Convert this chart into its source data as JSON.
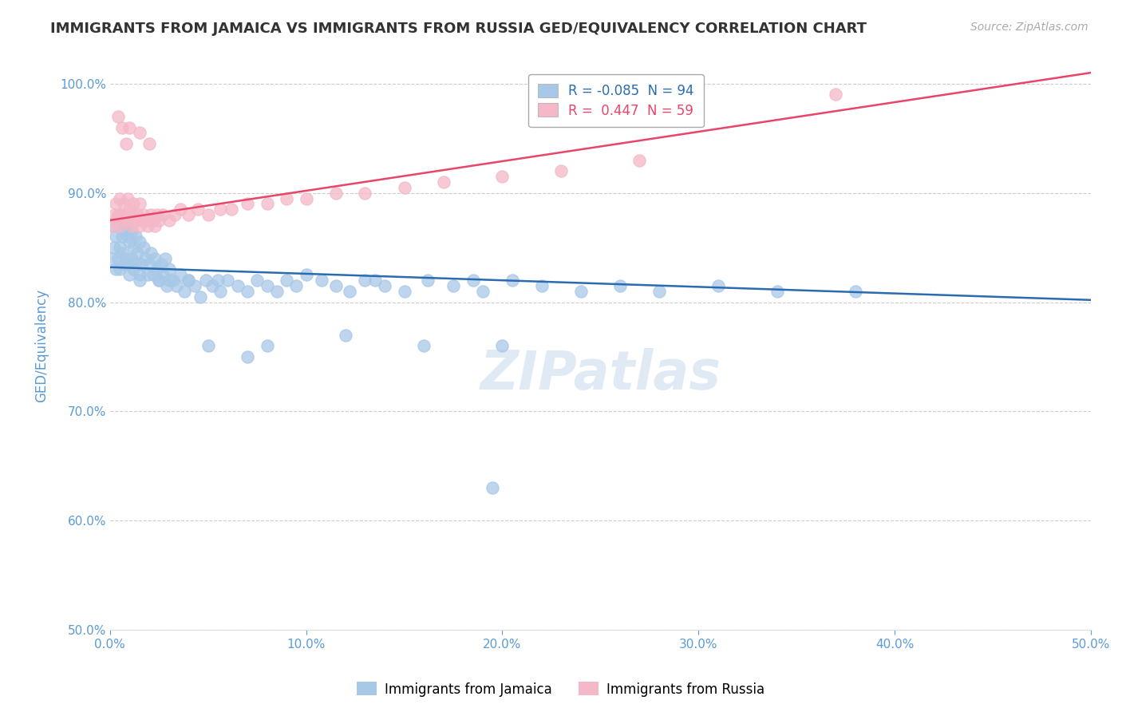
{
  "title": "IMMIGRANTS FROM JAMAICA VS IMMIGRANTS FROM RUSSIA GED/EQUIVALENCY CORRELATION CHART",
  "source_text": "Source: ZipAtlas.com",
  "xlabel": "",
  "ylabel": "GED/Equivalency",
  "xlim": [
    0.0,
    0.5
  ],
  "ylim": [
    0.5,
    1.02
  ],
  "xticks": [
    0.0,
    0.1,
    0.2,
    0.3,
    0.4,
    0.5
  ],
  "xtick_labels": [
    "0.0%",
    "10.0%",
    "20.0%",
    "30.0%",
    "40.0%",
    "50.0%"
  ],
  "ytick_positions": [
    0.5,
    0.6,
    0.7,
    0.8,
    0.9,
    1.0
  ],
  "ytick_labels": [
    "50.0%",
    "60.0%",
    "70.0%",
    "80.0%",
    "90.0%",
    "100.0%"
  ],
  "jamaica_color": "#a8c8e8",
  "russia_color": "#f4b8c8",
  "jamaica_line_color": "#2b6cb0",
  "russia_line_color": "#e8456a",
  "r_jamaica": -0.085,
  "n_jamaica": 94,
  "r_russia": 0.447,
  "n_russia": 59,
  "watermark": "ZIPatlas",
  "background_color": "#ffffff",
  "grid_color": "#cccccc",
  "title_color": "#333333",
  "axis_color": "#5b9bd5",
  "tick_color": "#5b9bd5",
  "jamaica_scatter_x": [
    0.001,
    0.002,
    0.002,
    0.003,
    0.003,
    0.004,
    0.004,
    0.005,
    0.005,
    0.005,
    0.006,
    0.006,
    0.007,
    0.007,
    0.008,
    0.008,
    0.009,
    0.009,
    0.01,
    0.01,
    0.011,
    0.011,
    0.012,
    0.012,
    0.013,
    0.013,
    0.014,
    0.015,
    0.015,
    0.016,
    0.017,
    0.018,
    0.019,
    0.02,
    0.021,
    0.022,
    0.023,
    0.024,
    0.025,
    0.026,
    0.027,
    0.028,
    0.029,
    0.03,
    0.032,
    0.034,
    0.036,
    0.038,
    0.04,
    0.043,
    0.046,
    0.049,
    0.052,
    0.056,
    0.06,
    0.065,
    0.07,
    0.075,
    0.08,
    0.085,
    0.09,
    0.095,
    0.1,
    0.108,
    0.115,
    0.122,
    0.13,
    0.14,
    0.15,
    0.162,
    0.175,
    0.19,
    0.205,
    0.22,
    0.24,
    0.26,
    0.28,
    0.31,
    0.34,
    0.38,
    0.08,
    0.12,
    0.16,
    0.2,
    0.05,
    0.07,
    0.03,
    0.015,
    0.025,
    0.04,
    0.055,
    0.135,
    0.185,
    0.195
  ],
  "jamaica_scatter_y": [
    0.84,
    0.85,
    0.87,
    0.83,
    0.86,
    0.84,
    0.875,
    0.83,
    0.85,
    0.88,
    0.845,
    0.86,
    0.835,
    0.865,
    0.84,
    0.87,
    0.835,
    0.86,
    0.825,
    0.855,
    0.84,
    0.865,
    0.83,
    0.85,
    0.835,
    0.86,
    0.845,
    0.825,
    0.855,
    0.835,
    0.85,
    0.84,
    0.825,
    0.835,
    0.845,
    0.825,
    0.84,
    0.83,
    0.82,
    0.835,
    0.825,
    0.84,
    0.815,
    0.83,
    0.82,
    0.815,
    0.825,
    0.81,
    0.82,
    0.815,
    0.805,
    0.82,
    0.815,
    0.81,
    0.82,
    0.815,
    0.81,
    0.82,
    0.815,
    0.81,
    0.82,
    0.815,
    0.825,
    0.82,
    0.815,
    0.81,
    0.82,
    0.815,
    0.81,
    0.82,
    0.815,
    0.81,
    0.82,
    0.815,
    0.81,
    0.815,
    0.81,
    0.815,
    0.81,
    0.81,
    0.76,
    0.77,
    0.76,
    0.76,
    0.76,
    0.75,
    0.82,
    0.82,
    0.82,
    0.82,
    0.82,
    0.82,
    0.82,
    0.63
  ],
  "russia_scatter_x": [
    0.001,
    0.002,
    0.003,
    0.003,
    0.004,
    0.005,
    0.005,
    0.006,
    0.007,
    0.007,
    0.008,
    0.009,
    0.009,
    0.01,
    0.01,
    0.011,
    0.012,
    0.012,
    0.013,
    0.014,
    0.015,
    0.015,
    0.016,
    0.017,
    0.018,
    0.019,
    0.02,
    0.021,
    0.022,
    0.023,
    0.024,
    0.025,
    0.027,
    0.03,
    0.033,
    0.036,
    0.04,
    0.045,
    0.05,
    0.056,
    0.062,
    0.07,
    0.08,
    0.09,
    0.1,
    0.115,
    0.13,
    0.15,
    0.17,
    0.2,
    0.23,
    0.27,
    0.02,
    0.015,
    0.01,
    0.008,
    0.006,
    0.004,
    0.37
  ],
  "russia_scatter_y": [
    0.87,
    0.88,
    0.875,
    0.89,
    0.88,
    0.87,
    0.895,
    0.88,
    0.875,
    0.89,
    0.875,
    0.88,
    0.895,
    0.875,
    0.885,
    0.87,
    0.88,
    0.89,
    0.875,
    0.88,
    0.87,
    0.89,
    0.875,
    0.88,
    0.875,
    0.87,
    0.875,
    0.88,
    0.875,
    0.87,
    0.88,
    0.875,
    0.88,
    0.875,
    0.88,
    0.885,
    0.88,
    0.885,
    0.88,
    0.885,
    0.885,
    0.89,
    0.89,
    0.895,
    0.895,
    0.9,
    0.9,
    0.905,
    0.91,
    0.915,
    0.92,
    0.93,
    0.945,
    0.955,
    0.96,
    0.945,
    0.96,
    0.97,
    0.99
  ]
}
